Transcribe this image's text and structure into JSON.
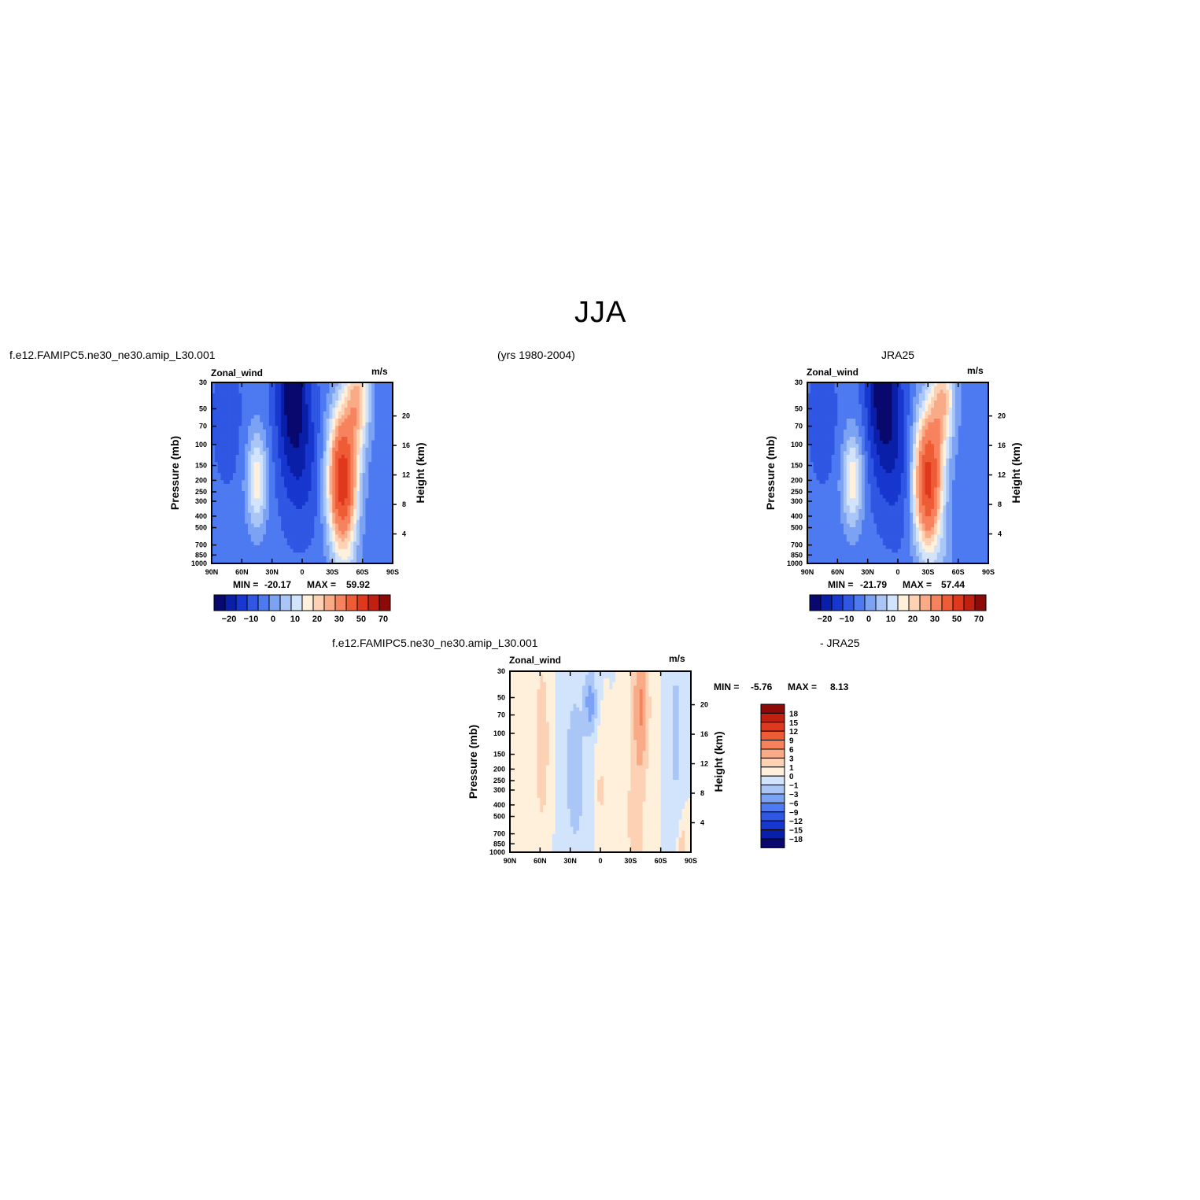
{
  "page": {
    "title": "JJA",
    "model_case": "f.e12.FAMIPC5.ne30_ne30.amip_L30.001",
    "years": "(yrs 1980-2004)",
    "obs_name": "JRA25",
    "diff_case": "f.e12.FAMIPC5.ne30_ne30.amip_L30.001",
    "diff_obs": "- JRA25"
  },
  "colors": {
    "full_palette": [
      "#08086e",
      "#0a1fa8",
      "#1737cf",
      "#2f57e3",
      "#4d7af0",
      "#7ca3f3",
      "#a9c6f6",
      "#d2e4fb",
      "#fff0dc",
      "#fdd2b4",
      "#f9ab88",
      "#f6835e",
      "#ee5c36",
      "#e0381d",
      "#bf2010",
      "#8c0a08"
    ],
    "diff_palette": [
      "#08086e",
      "#0a1fa8",
      "#1737cf",
      "#2f57e3",
      "#4d7af0",
      "#7ca3f3",
      "#a9c6f6",
      "#d2e4fb",
      "#fff0dc",
      "#fdd2b4",
      "#f9ab88",
      "#f6835e",
      "#ee5c36",
      "#e0381d",
      "#bf2010",
      "#8c0a08"
    ]
  },
  "chart_data": [
    {
      "type": "heatmap",
      "panel": "model",
      "title": "Zonal_wind",
      "units": "m/s",
      "ylabel": "Pressure (mb)",
      "ylabel_right": "Height (km)",
      "x_ticks": [
        "90N",
        "60N",
        "30N",
        "0",
        "30S",
        "60S",
        "90S"
      ],
      "y_ticks": [
        "30",
        "50",
        "70",
        "100",
        "150",
        "200",
        "250",
        "300",
        "400",
        "500",
        "700",
        "850",
        "1000"
      ],
      "y_right_ticks": [
        "20",
        "16",
        "12",
        "8",
        "4"
      ],
      "min_label": "MIN =",
      "min": "-20.17",
      "max_label": "MAX =",
      "max": "59.92",
      "colorbar_labels": [
        "-20",
        "-10",
        "0",
        "10",
        "20",
        "30",
        "50",
        "70"
      ],
      "jets": {
        "westerly_core_lat": -40,
        "westerly_core_mb": 200,
        "westerly_max": 59.92,
        "easterly_core_lat": 10,
        "easterly_core_mb": 30,
        "easterly_min": -20.17,
        "nh_jet_lat": 45,
        "nh_jet_mb": 200
      }
    },
    {
      "type": "heatmap",
      "panel": "obs",
      "title": "Zonal_wind",
      "units": "m/s",
      "ylabel": "Pressure (mb)",
      "ylabel_right": "Height (km)",
      "x_ticks": [
        "90N",
        "60N",
        "30N",
        "0",
        "30S",
        "60S",
        "90S"
      ],
      "y_ticks": [
        "30",
        "50",
        "70",
        "100",
        "150",
        "200",
        "250",
        "300",
        "400",
        "500",
        "700",
        "850",
        "1000"
      ],
      "y_right_ticks": [
        "20",
        "16",
        "12",
        "8",
        "4"
      ],
      "min_label": "MIN =",
      "min": "-21.79",
      "max_label": "MAX =",
      "max": "57.44",
      "colorbar_labels": [
        "-20",
        "-10",
        "0",
        "10",
        "20",
        "30",
        "50",
        "70"
      ],
      "jets": {
        "westerly_core_lat": -30,
        "westerly_core_mb": 200,
        "westerly_max": 57.44,
        "easterly_core_lat": 15,
        "easterly_core_mb": 30,
        "easterly_min": -21.79,
        "nh_jet_lat": 45,
        "nh_jet_mb": 200
      }
    },
    {
      "type": "heatmap",
      "panel": "difference",
      "title": "Zonal_wind",
      "units": "m/s",
      "ylabel": "Pressure (mb)",
      "ylabel_right": "Height (km)",
      "x_ticks": [
        "90N",
        "60N",
        "30N",
        "0",
        "30S",
        "60S",
        "90S"
      ],
      "y_ticks": [
        "30",
        "50",
        "70",
        "100",
        "150",
        "200",
        "250",
        "300",
        "400",
        "500",
        "700",
        "850",
        "1000"
      ],
      "y_right_ticks": [
        "20",
        "16",
        "12",
        "8",
        "4"
      ],
      "min_label": "MIN =",
      "min": "-5.76",
      "max_label": "MAX =",
      "max": "8.13",
      "colorbar_labels": [
        "18",
        "15",
        "12",
        "9",
        "6",
        "3",
        "1",
        "0",
        "-1",
        "-3",
        "-6",
        "-9",
        "-12",
        "-15",
        "-18"
      ]
    }
  ]
}
